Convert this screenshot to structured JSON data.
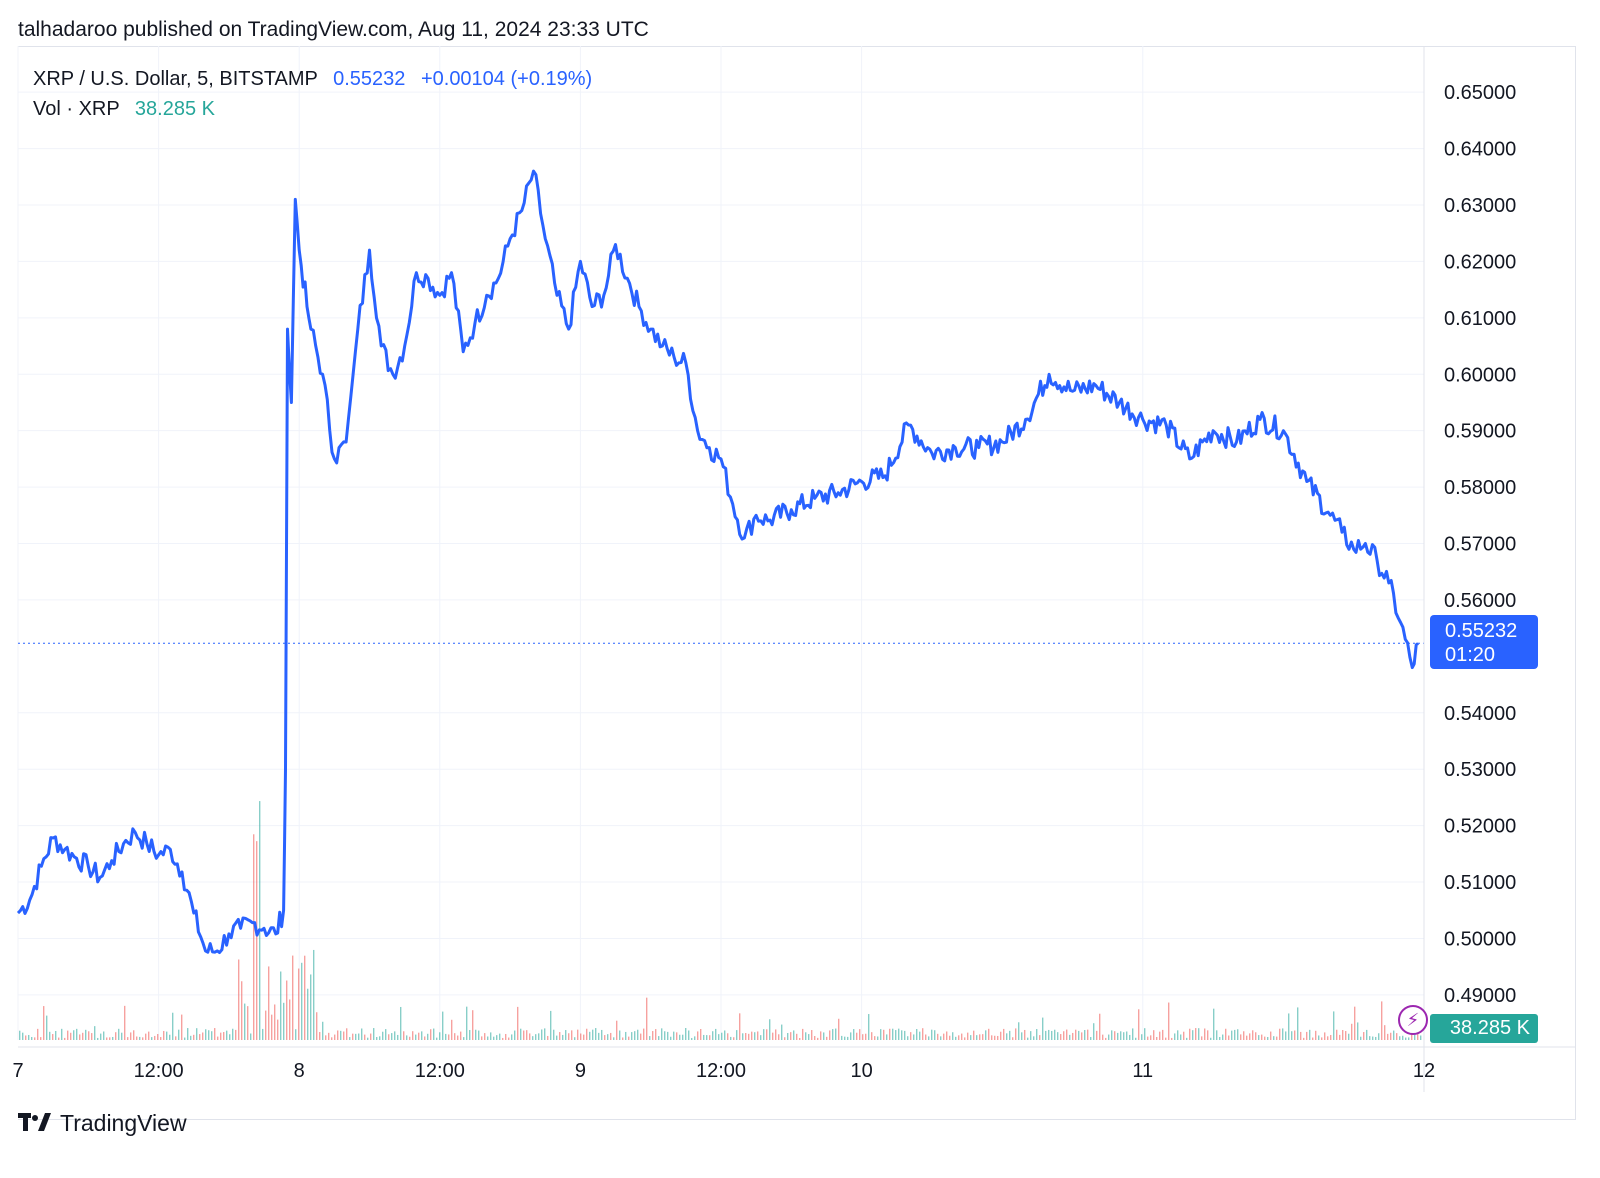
{
  "header": {
    "publish_line": "talhadaroo published on TradingView.com, Aug 11, 2024 23:33 UTC"
  },
  "legend": {
    "symbol": "XRP / U.S. Dollar, 5, BITSTAMP",
    "last": "0.55232",
    "change": "+0.00104 (+0.19%)",
    "vol_label": "Vol · XRP",
    "vol_value": "38.285 K"
  },
  "price_tag": {
    "price": "0.55232",
    "countdown": "01:20"
  },
  "volume_tag": "38.285 K",
  "brand": {
    "name": "TradingView"
  },
  "colors": {
    "line": "#2962ff",
    "vol_up": "#26a69a",
    "vol_down": "#ef5350",
    "grid": "#f0f3fa"
  },
  "chart_data": {
    "type": "line",
    "title": "XRP / U.S. Dollar, 5, BITSTAMP",
    "ylim": [
      0.482,
      0.6557
    ],
    "y_ticks": [
      "0.65000",
      "0.64000",
      "0.63000",
      "0.62000",
      "0.61000",
      "0.60000",
      "0.59000",
      "0.58000",
      "0.57000",
      "0.56000",
      "0.54000",
      "0.53000",
      "0.52000",
      "0.51000",
      "0.50000",
      "0.49000"
    ],
    "y_tick_values": [
      0.65,
      0.64,
      0.63,
      0.62,
      0.61,
      0.6,
      0.59,
      0.58,
      0.57,
      0.56,
      0.54,
      0.53,
      0.52,
      0.51,
      0.5,
      0.49
    ],
    "x_tick_labels": [
      "7",
      "12:00",
      "8",
      "12:00",
      "9",
      "12:00",
      "10",
      "11",
      "12"
    ],
    "x_tick_times": [
      "Aug 7 00:00",
      "Aug 7 12:00",
      "Aug 8 00:00",
      "Aug 8 12:00",
      "Aug 9 00:00",
      "Aug 9 12:00",
      "Aug 10 00:00",
      "Aug 11 00:00",
      "Aug 12 00:00"
    ],
    "xlim": [
      "Aug 7 00:00",
      "Aug 12 00:00"
    ],
    "grid": true,
    "last_price_line": 0.55232,
    "series": [
      {
        "x": [
          "Aug 7 00:00",
          "Aug 7 01:00",
          "Aug 7 02:00",
          "Aug 7 03:00",
          "Aug 7 04:00",
          "Aug 7 05:00",
          "Aug 7 06:00",
          "Aug 7 07:00",
          "Aug 7 08:00",
          "Aug 7 09:00",
          "Aug 7 10:00",
          "Aug 7 11:00",
          "Aug 7 12:00",
          "Aug 7 13:00",
          "Aug 7 14:00",
          "Aug 7 15:00",
          "Aug 7 16:00",
          "Aug 7 17:00",
          "Aug 7 18:00",
          "Aug 7 19:00",
          "Aug 7 20:00",
          "Aug 7 21:00",
          "Aug 7 22:00",
          "Aug 7 22:40",
          "Aug 7 22:50",
          "Aug 7 23:00",
          "Aug 7 23:20",
          "Aug 7 23:40",
          "Aug 8 00:00",
          "Aug 8 00:40",
          "Aug 8 01:00",
          "Aug 8 02:00",
          "Aug 8 03:00",
          "Aug 8 04:00",
          "Aug 8 05:00",
          "Aug 8 06:00",
          "Aug 8 07:00",
          "Aug 8 08:00",
          "Aug 8 09:00",
          "Aug 8 10:00",
          "Aug 8 11:00",
          "Aug 8 12:00",
          "Aug 8 13:00",
          "Aug 8 14:00",
          "Aug 8 15:00",
          "Aug 8 16:00",
          "Aug 8 17:00",
          "Aug 8 18:00",
          "Aug 8 19:00",
          "Aug 8 20:00",
          "Aug 8 21:00",
          "Aug 8 22:00",
          "Aug 8 23:00",
          "Aug 9 00:00",
          "Aug 9 01:00",
          "Aug 9 02:00",
          "Aug 9 03:00",
          "Aug 9 04:00",
          "Aug 9 05:00",
          "Aug 9 06:00",
          "Aug 9 07:00",
          "Aug 9 08:00",
          "Aug 9 09:00",
          "Aug 9 10:00",
          "Aug 9 11:00",
          "Aug 9 12:00",
          "Aug 9 13:00",
          "Aug 9 14:00",
          "Aug 9 15:00",
          "Aug 9 16:00",
          "Aug 9 18:00",
          "Aug 9 20:00",
          "Aug 9 22:00",
          "Aug 10 00:00",
          "Aug 10 02:00",
          "Aug 10 04:00",
          "Aug 10 06:00",
          "Aug 10 08:00",
          "Aug 10 10:00",
          "Aug 10 12:00",
          "Aug 10 14:00",
          "Aug 10 16:00",
          "Aug 10 18:00",
          "Aug 10 20:00",
          "Aug 10 22:00",
          "Aug 11 00:00",
          "Aug 11 02:00",
          "Aug 11 04:00",
          "Aug 11 06:00",
          "Aug 11 08:00",
          "Aug 11 10:00",
          "Aug 11 12:00",
          "Aug 11 14:00",
          "Aug 11 16:00",
          "Aug 11 17:00",
          "Aug 11 18:00",
          "Aug 11 19:00",
          "Aug 11 20:00",
          "Aug 11 21:00",
          "Aug 11 22:00",
          "Aug 11 23:00",
          "Aug 11 23:30"
        ],
        "values": [
          0.5045,
          0.5068,
          0.5128,
          0.5178,
          0.5158,
          0.5142,
          0.5128,
          0.5108,
          0.5138,
          0.5168,
          0.5188,
          0.5168,
          0.5148,
          0.5158,
          0.5118,
          0.5045,
          0.4978,
          0.4978,
          0.5008,
          0.5018,
          0.5028,
          0.5018,
          0.5008,
          0.505,
          0.53,
          0.608,
          0.595,
          0.631,
          0.622,
          0.612,
          0.608,
          0.6,
          0.585,
          0.588,
          0.608,
          0.622,
          0.605,
          0.6,
          0.605,
          0.618,
          0.617,
          0.614,
          0.618,
          0.604,
          0.609,
          0.614,
          0.617,
          0.624,
          0.629,
          0.636,
          0.624,
          0.614,
          0.608,
          0.62,
          0.612,
          0.614,
          0.623,
          0.617,
          0.612,
          0.608,
          0.605,
          0.603,
          0.602,
          0.59,
          0.587,
          0.585,
          0.577,
          0.571,
          0.575,
          0.574,
          0.576,
          0.578,
          0.579,
          0.581,
          0.582,
          0.591,
          0.586,
          0.587,
          0.587,
          0.588,
          0.592,
          0.6,
          0.597,
          0.598,
          0.595,
          0.592,
          0.591,
          0.585,
          0.59,
          0.588,
          0.592,
          0.59,
          0.581,
          0.575,
          0.572,
          0.569,
          0.57,
          0.567,
          0.563,
          0.556,
          0.548,
          0.5523
        ]
      }
    ],
    "volume_series_last": "38.285 K",
    "volume_ylim": [
      0,
      1
    ]
  }
}
